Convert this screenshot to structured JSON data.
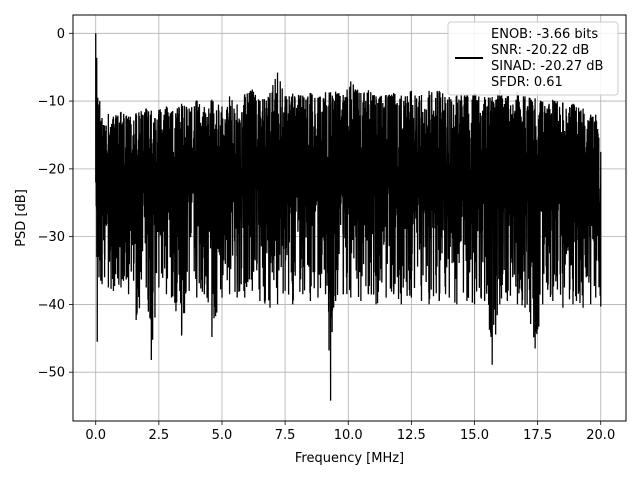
{
  "chart_data": {
    "type": "line",
    "title": "",
    "xlabel": "Frequency [MHz]",
    "ylabel": "PSD [dB]",
    "xlim": [
      -0.9,
      21.0
    ],
    "ylim": [
      -57.2,
      2.7
    ],
    "grid": true,
    "legend_placement": "top-right",
    "line_color": "#000000",
    "xticks": [
      0.0,
      2.5,
      5.0,
      7.5,
      10.0,
      12.5,
      15.0,
      17.5,
      20.0
    ],
    "xtick_labels": [
      "0.0",
      "2.5",
      "5.0",
      "7.5",
      "10.0",
      "12.5",
      "15.0",
      "17.5",
      "20.0"
    ],
    "yticks": [
      0,
      -10,
      -20,
      -30,
      -40,
      -50
    ],
    "ytick_labels": [
      "0",
      "−10",
      "−20",
      "−30",
      "−40",
      "−50"
    ],
    "legend_lines": [
      "ENOB: -3.66 bits",
      "SNR: -20.22 dB",
      "SINAD: -20.27 dB",
      "SFDR: 0.61"
    ],
    "series": [
      {
        "x": [
          0.0,
          0.02,
          0.04,
          0.06,
          0.08,
          0.1,
          0.13,
          0.16,
          0.2,
          0.25,
          0.35,
          0.5,
          0.7,
          1.0,
          1.3,
          1.6,
          2.0,
          2.2,
          2.5,
          2.8,
          3.0,
          3.4,
          3.7,
          4.0,
          4.3,
          4.6,
          5.0,
          5.3,
          5.6,
          5.9,
          6.2,
          6.5,
          6.9,
          7.2,
          7.5,
          7.8,
          8.2,
          8.5,
          8.8,
          9.1,
          9.3,
          9.5,
          9.8,
          10.1,
          10.5,
          10.8,
          11.1,
          11.5,
          11.8,
          12.1,
          12.5,
          12.9,
          13.2,
          13.6,
          14.0,
          14.3,
          14.7,
          15.0,
          15.4,
          15.7,
          16.0,
          16.3,
          16.7,
          17.0,
          17.4,
          17.7,
          18.1,
          18.5,
          18.9,
          19.3,
          19.6,
          19.8,
          20.0
        ],
        "upper": [
          0.0,
          -7.2,
          -3.6,
          -12.0,
          -9.5,
          -10.5,
          -12.3,
          -10.0,
          -13.0,
          -12.5,
          -13.6,
          -11.9,
          -12.3,
          -11.6,
          -12.3,
          -11.8,
          -11.1,
          -11.4,
          -11.3,
          -10.8,
          -11.6,
          -10.4,
          -11.1,
          -9.9,
          -10.9,
          -9.8,
          -10.8,
          -9.3,
          -10.5,
          -9.0,
          -8.3,
          -10.0,
          -8.8,
          -5.8,
          -9.3,
          -8.9,
          -9.2,
          -8.8,
          -9.5,
          -8.7,
          -8.7,
          -8.6,
          -9.1,
          -7.1,
          -8.8,
          -8.4,
          -9.3,
          -9.1,
          -8.8,
          -9.2,
          -8.5,
          -9.1,
          -8.5,
          -8.5,
          -9.4,
          -9.2,
          -9.1,
          -8.8,
          -9.4,
          -9.4,
          -8.4,
          -9.3,
          -8.7,
          -9.3,
          -9.6,
          -10.1,
          -9.8,
          -10.2,
          -10.4,
          -11.1,
          -12.0,
          -12.0,
          -17.5
        ],
        "lower": [
          -22.0,
          -25.5,
          -33.0,
          -45.5,
          -28.0,
          -33.0,
          -36.0,
          -33.5,
          -36.5,
          -37.0,
          -36.0,
          -37.5,
          -38.0,
          -37.5,
          -38.5,
          -42.3,
          -37.5,
          -48.2,
          -37.5,
          -38.5,
          -39.0,
          -44.6,
          -38.0,
          -39.0,
          -38.5,
          -44.8,
          -39.0,
          -38.5,
          -39.0,
          -39.0,
          -38.0,
          -39.5,
          -40.5,
          -40.0,
          -38.0,
          -40.0,
          -38.5,
          -39.5,
          -39.0,
          -38.5,
          -54.2,
          -39.5,
          -38.5,
          -39.0,
          -39.5,
          -38.5,
          -40.0,
          -39.0,
          -38.5,
          -40.0,
          -39.0,
          -39.5,
          -40.0,
          -39.5,
          -39.0,
          -40.0,
          -39.5,
          -40.0,
          -39.5,
          -48.9,
          -40.0,
          -39.5,
          -40.0,
          -40.5,
          -46.5,
          -40.0,
          -39.5,
          -40.5,
          -40.0,
          -40.5,
          -40.0,
          -39.0,
          -40.3
        ]
      }
    ]
  }
}
